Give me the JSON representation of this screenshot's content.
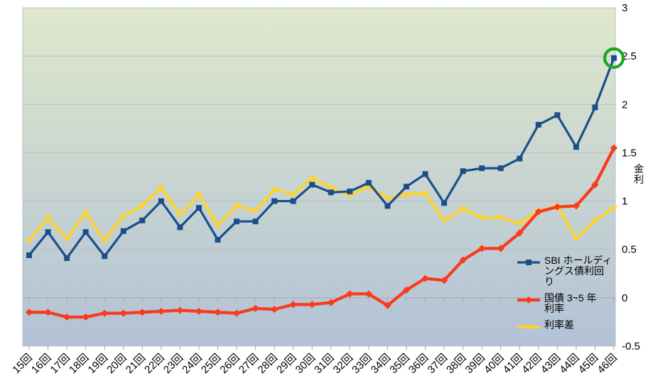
{
  "chart": {
    "y_axis_title": "金利",
    "legend_items": [
      {
        "label_lines": [
          "SBI ホールディ",
          "ングス債利回",
          "り"
        ]
      },
      {
        "label_lines": [
          "国債 3~5 年",
          "利率"
        ]
      },
      {
        "label_lines": [
          "利率差"
        ]
      }
    ]
  },
  "chart_data": {
    "type": "line",
    "title": "",
    "xlabel": "",
    "ylabel": "金利",
    "ylim": [
      -0.5,
      3
    ],
    "y_ticks": [
      3,
      2.5,
      2,
      1.5,
      1,
      0.5,
      0,
      -0.5
    ],
    "y_tick_labels": [
      "3",
      "2.5",
      "2",
      "1.5",
      "1",
      "0.5",
      "0",
      "-0.5"
    ],
    "grid": true,
    "legend_position": "right-inside",
    "plot_bg_gradient_top": "#dfe8cc",
    "plot_bg_gradient_bottom": "#b2c2d6",
    "grid_color": "#b9bec4",
    "axis_color": "#a7abb0",
    "categories": [
      "15回",
      "16回",
      "17回",
      "18回",
      "19回",
      "20回",
      "21回",
      "22回",
      "23回",
      "24回",
      "25回",
      "26回",
      "27回",
      "28回",
      "29回",
      "30回",
      "31回",
      "32回",
      "33回",
      "34回",
      "35回",
      "36回",
      "37回",
      "38回",
      "39回",
      "40回",
      "41回",
      "42回",
      "43回",
      "44回",
      "45回",
      "46回"
    ],
    "series": [
      {
        "name": "SBI ホールディングス債利回り",
        "color": "#1b4e89",
        "marker": "square",
        "line_width": 3.2,
        "values": [
          0.44,
          0.68,
          0.41,
          0.68,
          0.43,
          0.69,
          0.8,
          1.0,
          0.73,
          0.93,
          0.6,
          0.79,
          0.79,
          1.0,
          1.0,
          1.17,
          1.09,
          1.1,
          1.19,
          0.95,
          1.15,
          1.28,
          0.98,
          1.31,
          1.34,
          1.34,
          1.44,
          1.79,
          1.89,
          1.56,
          1.97,
          2.48
        ]
      },
      {
        "name": "国債 3~5 年利率",
        "color": "#f83b1d",
        "marker": "diamond",
        "line_width": 4.3,
        "values": [
          -0.15,
          -0.15,
          -0.2,
          -0.2,
          -0.16,
          -0.16,
          -0.15,
          -0.14,
          -0.13,
          -0.14,
          -0.15,
          -0.16,
          -0.11,
          -0.12,
          -0.07,
          -0.07,
          -0.05,
          0.04,
          0.04,
          -0.08,
          0.08,
          0.2,
          0.18,
          0.39,
          0.51,
          0.51,
          0.67,
          0.89,
          0.94,
          0.95,
          1.17,
          1.55
        ]
      },
      {
        "name": "利率差",
        "color": "#fed42c",
        "marker": "triangle-down",
        "line_width": 3.8,
        "values": [
          0.59,
          0.83,
          0.61,
          0.88,
          0.59,
          0.85,
          0.95,
          1.14,
          0.86,
          1.07,
          0.75,
          0.95,
          0.9,
          1.12,
          1.07,
          1.24,
          1.14,
          1.06,
          1.15,
          1.03,
          1.07,
          1.08,
          0.8,
          0.92,
          0.83,
          0.83,
          0.77,
          0.9,
          0.95,
          0.61,
          0.8,
          0.93
        ]
      }
    ],
    "annotation": {
      "type": "circle",
      "series": "SBI ホールディングス債利回り",
      "category": "46回",
      "value": 2.48,
      "color": "#1da522"
    }
  }
}
